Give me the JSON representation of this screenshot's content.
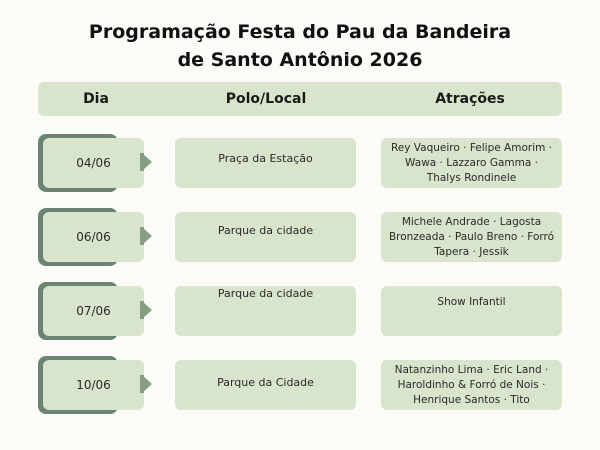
{
  "title": {
    "line1": "Programação Festa do Pau da Bandeira",
    "line2": "de Santo Antônio 2026"
  },
  "header": {
    "dia": "Dia",
    "polo": "Polo/Local",
    "atracoes": "Atrações"
  },
  "colors": {
    "background": "#fbfcf8",
    "box": "#d8e4cc",
    "accent_dark": "#6b8371",
    "arrow": "#869e85"
  },
  "rows": [
    {
      "dia": "04/06",
      "local": "Praça da Estação",
      "atracoes": "Rey Vaqueiro · Felipe Amorim · Wawa · Lazzaro Gamma · Thalys Rondinele"
    },
    {
      "dia": "06/06",
      "local": "Parque da cidade",
      "atracoes": "Michele Andrade · Lagosta Bronzeada · Paulo Breno · Forró Tapera · Jessik"
    },
    {
      "dia": "07/06",
      "local": "Parque da cidade",
      "atracoes": "Show Infantil"
    },
    {
      "dia": "10/06",
      "local": "Parque da Cidade",
      "atracoes": "Natanzinho Lima · Eric Land · Haroldinho & Forró de Nois · Henrique Santos · Tito"
    }
  ]
}
